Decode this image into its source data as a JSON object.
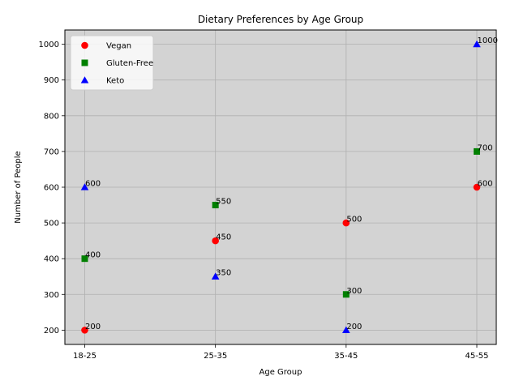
{
  "chart_data": {
    "type": "scatter",
    "title": "Dietary Preferences by Age Group",
    "xlabel": "Age Group",
    "ylabel": "Number of People",
    "categories": [
      "18-25",
      "25-35",
      "35-45",
      "45-55"
    ],
    "ylim": [
      160,
      1040
    ],
    "yticks": [
      200,
      300,
      400,
      500,
      600,
      700,
      800,
      900,
      1000
    ],
    "grid": true,
    "legend_position": "top-left",
    "background_color": "#d3d3d3",
    "series": [
      {
        "name": "Vegan",
        "marker": "circle",
        "color": "#ff0000",
        "values": [
          200,
          450,
          500,
          600
        ]
      },
      {
        "name": "Gluten-Free",
        "marker": "square",
        "color": "#008000",
        "values": [
          400,
          550,
          300,
          700
        ]
      },
      {
        "name": "Keto",
        "marker": "triangle",
        "color": "#0000ff",
        "values": [
          600,
          350,
          200,
          1000
        ]
      }
    ]
  }
}
